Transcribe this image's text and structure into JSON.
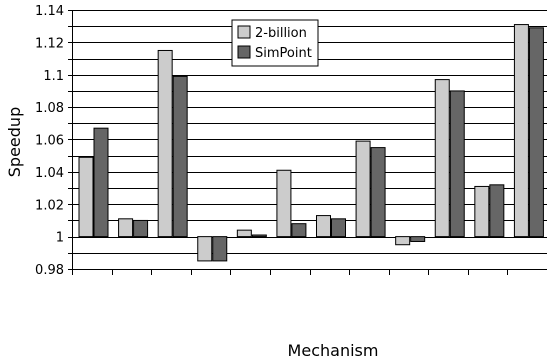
{
  "chart_data": {
    "type": "bar",
    "xlabel": "Mechanism",
    "ylabel": "Speedup",
    "ylim": [
      0.98,
      1.14
    ],
    "yticks": [
      "0.98",
      "1",
      "1.02",
      "1.04",
      "1.06",
      "1.08",
      "1.1",
      "1.12",
      "1.14"
    ],
    "grid": true,
    "legend_position": "top-center",
    "categories": [
      "",
      "",
      "",
      "",
      "",
      "",
      "",
      "",
      "",
      "",
      "",
      ""
    ],
    "series": [
      {
        "name": "2-billion",
        "color": "#cccccc",
        "values": [
          1.049,
          1.011,
          1.115,
          0.985,
          1.004,
          1.041,
          1.013,
          1.059,
          0.995,
          1.097,
          1.031,
          1.131
        ]
      },
      {
        "name": "SimPoint",
        "color": "#666666",
        "values": [
          1.067,
          1.01,
          1.099,
          0.985,
          1.001,
          1.008,
          1.011,
          1.055,
          0.997,
          1.09,
          1.032,
          1.129
        ]
      }
    ]
  }
}
